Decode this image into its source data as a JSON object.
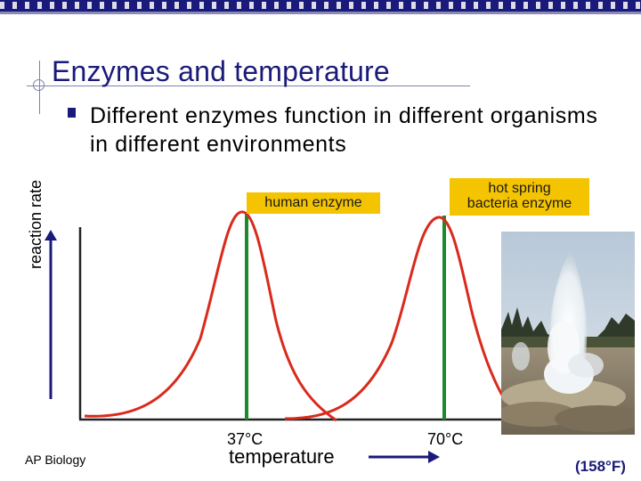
{
  "slide": {
    "title": "Enzymes and temperature",
    "bullet": "Different enzymes function in different organisms in different environments",
    "footer": "AP Biology"
  },
  "diagram": {
    "curves": [
      {
        "label": "human enzyme",
        "optimum_temp_label": "37°C",
        "color": "#d92a1c"
      },
      {
        "label_line1": "hot spring",
        "label_line2": "bacteria enzyme",
        "optimum_temp_label": "70°C",
        "color": "#d92a1c"
      }
    ],
    "y_axis_label": "reaction rate",
    "x_axis_label": "temperature",
    "fahrenheit_note": "(158°F)",
    "optimum_line_color": "#1e8a2e",
    "label_box_color": "#f5c400",
    "arrow_color": "#1a1a7a"
  },
  "photo": {
    "subject": "geyser-photo"
  }
}
